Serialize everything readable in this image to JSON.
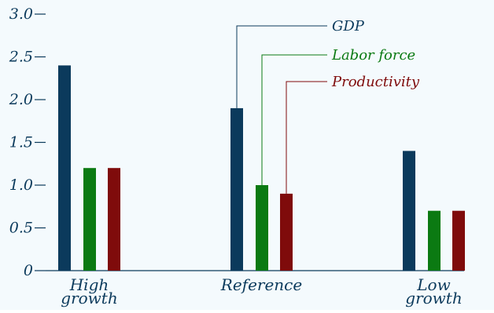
{
  "chart_data": {
    "type": "bar",
    "categories": [
      "High growth",
      "Reference",
      "Low growth"
    ],
    "category_lines": [
      [
        "High",
        "growth"
      ],
      [
        "Reference"
      ],
      [
        "Low",
        "growth"
      ]
    ],
    "series": [
      {
        "name": "GDP",
        "values": [
          2.4,
          1.9,
          1.4
        ],
        "color": "#0b3a5c"
      },
      {
        "name": "Labor force",
        "values": [
          1.2,
          1.0,
          0.7
        ],
        "color": "#0b7a12"
      },
      {
        "name": "Productivity",
        "values": [
          1.2,
          0.9,
          0.7
        ],
        "color": "#7f0b0b"
      }
    ],
    "ylim": [
      0,
      3.0
    ],
    "yticks": [
      "0",
      "0.5",
      "1.0",
      "1.5",
      "2.0",
      "2.5",
      "3.0"
    ],
    "grid": false,
    "legend": "callout-lines",
    "axis_color": "#0b3a5c"
  }
}
